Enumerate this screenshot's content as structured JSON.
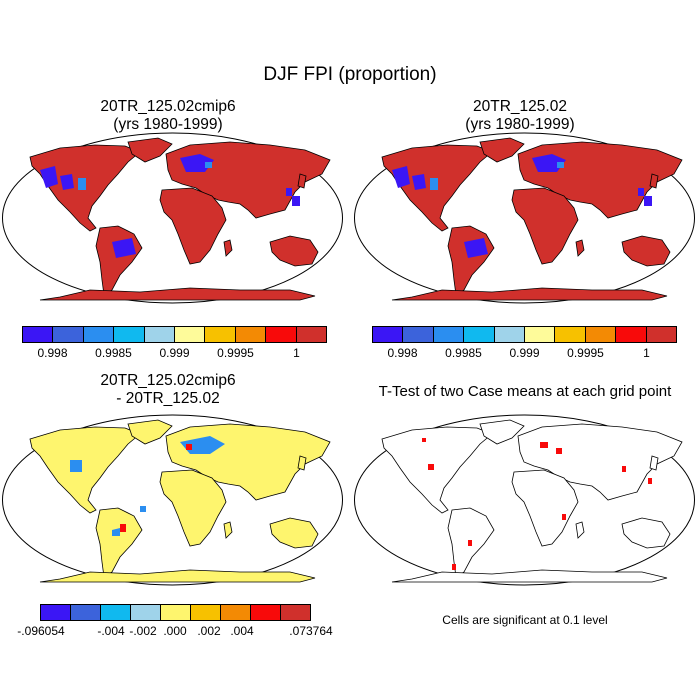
{
  "title": "DJF FPI (proportion)",
  "panels": {
    "p1": {
      "title": "20TR_125.02cmip6",
      "subtitle": "(yrs 1980-1999)"
    },
    "p2": {
      "title": "20TR_125.02",
      "subtitle": "(yrs 1980-1999)"
    },
    "p3": {
      "title": "20TR_125.02cmip6",
      "subtitle": "- 20TR_125.02"
    },
    "p4": {
      "title": "T-Test of two Case means at each grid point",
      "note": "Cells are significant at 0.1 level"
    }
  },
  "colorbar_top": {
    "colors": [
      "#3b16f5",
      "#3c63db",
      "#2b8ef0",
      "#10b9ef",
      "#9fd3ea",
      "#fefb9a",
      "#f7c100",
      "#f38a04",
      "#f80a0a",
      "#d0302c"
    ],
    "labels": [
      "0.998",
      "0.9985",
      "0.999",
      "0.9995",
      "1"
    ]
  },
  "colorbar_diff": {
    "colors": [
      "#3b16f5",
      "#3c63db",
      "#10b9ef",
      "#9fd3ea",
      "#fef56e",
      "#f7c100",
      "#f38a04",
      "#f80a0a",
      "#d0302c"
    ],
    "labels": [
      ".096054",
      "-.004",
      "-.002",
      ".000",
      ".002",
      ".004",
      ".073764"
    ],
    "first_label_prefix": "-"
  },
  "map_colors": {
    "land_top": "#d0302c",
    "land_diff": "#fef56e",
    "low": "#3b16f5",
    "mid": "#2b8ef0",
    "sig": "#f80a0a"
  }
}
